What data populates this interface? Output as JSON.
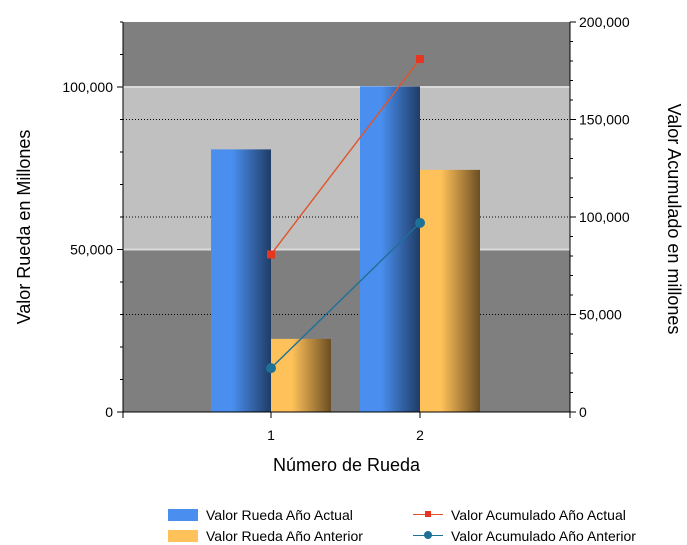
{
  "chart_data": {
    "type": "bar+line",
    "categories": [
      "1",
      "2"
    ],
    "xlabel": "Número de Rueda",
    "ylabel_left": "Valor Rueda en Millones",
    "ylabel_right": "Valor Acumulado en millones",
    "ylim_left": [
      0,
      100000
    ],
    "ylim_right": [
      0,
      200000
    ],
    "left_ticks": [
      "0",
      "50,000",
      "100,000"
    ],
    "right_ticks": [
      "0",
      "50,000",
      "100,000",
      "150,000",
      "200,000"
    ],
    "bar_series": [
      {
        "name": "Valor Rueda Año Actual",
        "values": [
          80800,
          100200
        ],
        "color": "#4a8ff0",
        "dark": "#1f3c66"
      },
      {
        "name": "Valor Rueda Año Anterior",
        "values": [
          22500,
          74500
        ],
        "color": "#ffc15a",
        "dark": "#6b4e22"
      }
    ],
    "line_series": [
      {
        "name": "Valor Acumulado Año Actual",
        "values": [
          80800,
          181000
        ],
        "color": "#e6361f",
        "line_color": "#e0542c",
        "marker": "square"
      },
      {
        "name": "Valor Acumulado Año Anterior",
        "values": [
          22500,
          97000
        ],
        "color": "#1f7096",
        "line_color": "#1f7096",
        "marker": "circle"
      }
    ],
    "plot_background": {
      "dark": "#7f7f7f",
      "light": "#c0c0c0"
    },
    "legend_position": "bottom"
  }
}
